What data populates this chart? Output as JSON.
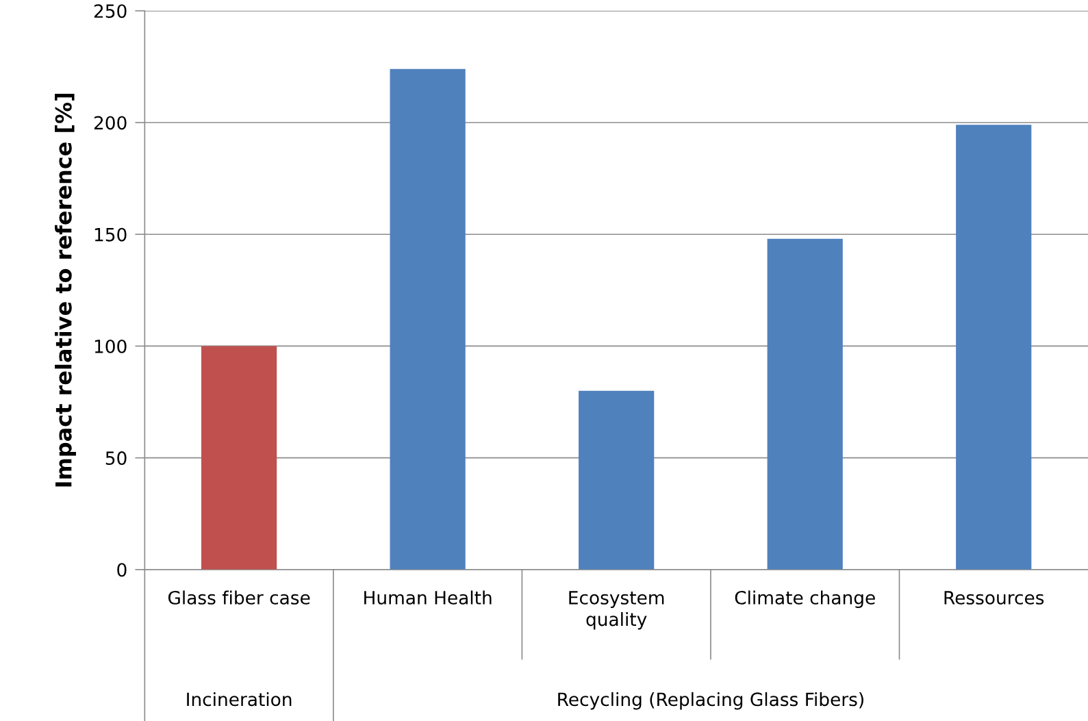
{
  "chart_data": {
    "type": "bar",
    "ylabel": "Impact relative to reference [%]",
    "categories": [
      "Glass fiber case",
      "Human Health",
      "Ecosystem\nquality",
      "Climate change",
      "Ressources"
    ],
    "values": [
      100,
      224,
      80,
      148,
      199
    ],
    "colors": [
      "#c0504d",
      "#4f81bd",
      "#4f81bd",
      "#4f81bd",
      "#4f81bd"
    ],
    "ylim": [
      0,
      250
    ],
    "yticks": [
      0,
      50,
      100,
      150,
      200,
      250
    ],
    "grid": "y",
    "annotations": [
      "Incineration",
      "Recycling (Replacing Glass Fibers)"
    ]
  }
}
